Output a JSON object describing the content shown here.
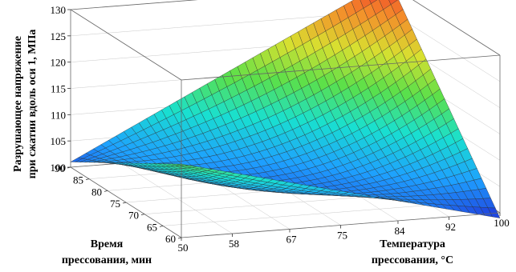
{
  "chart_data": {
    "type": "surface3d",
    "zlabel_line1": "Разрушающее напряжение",
    "zlabel_line2": "при сжатии вдоль оси 1, МПа",
    "xlabel_line1": "Температура",
    "xlabel_line2": "прессования, °С",
    "ylabel_line1": "Время",
    "ylabel_line2": "прессования, мин",
    "x_ticks": [
      "50",
      "58",
      "67",
      "75",
      "84",
      "92",
      "100"
    ],
    "y_ticks": [
      "60",
      "65",
      "70",
      "75",
      "80",
      "85",
      "90"
    ],
    "z_ticks": [
      "100",
      "105",
      "110",
      "115",
      "120",
      "125",
      "130"
    ],
    "xlim": [
      50,
      100
    ],
    "ylim": [
      60,
      90
    ],
    "zlim": [
      100,
      130
    ],
    "surface_samples": [
      {
        "temperature": 50,
        "time": 60,
        "stress": 114
      },
      {
        "temperature": 50,
        "time": 90,
        "stress": 101
      },
      {
        "temperature": 100,
        "time": 60,
        "stress": 99
      },
      {
        "temperature": 100,
        "time": 90,
        "stress": 131
      },
      {
        "temperature": 75,
        "time": 75,
        "stress": 103
      }
    ],
    "colormap": [
      "#1f2bd6",
      "#1ea0ff",
      "#19e0d0",
      "#5ae04a",
      "#d8e030",
      "#f58a2a",
      "#e8232a"
    ]
  }
}
